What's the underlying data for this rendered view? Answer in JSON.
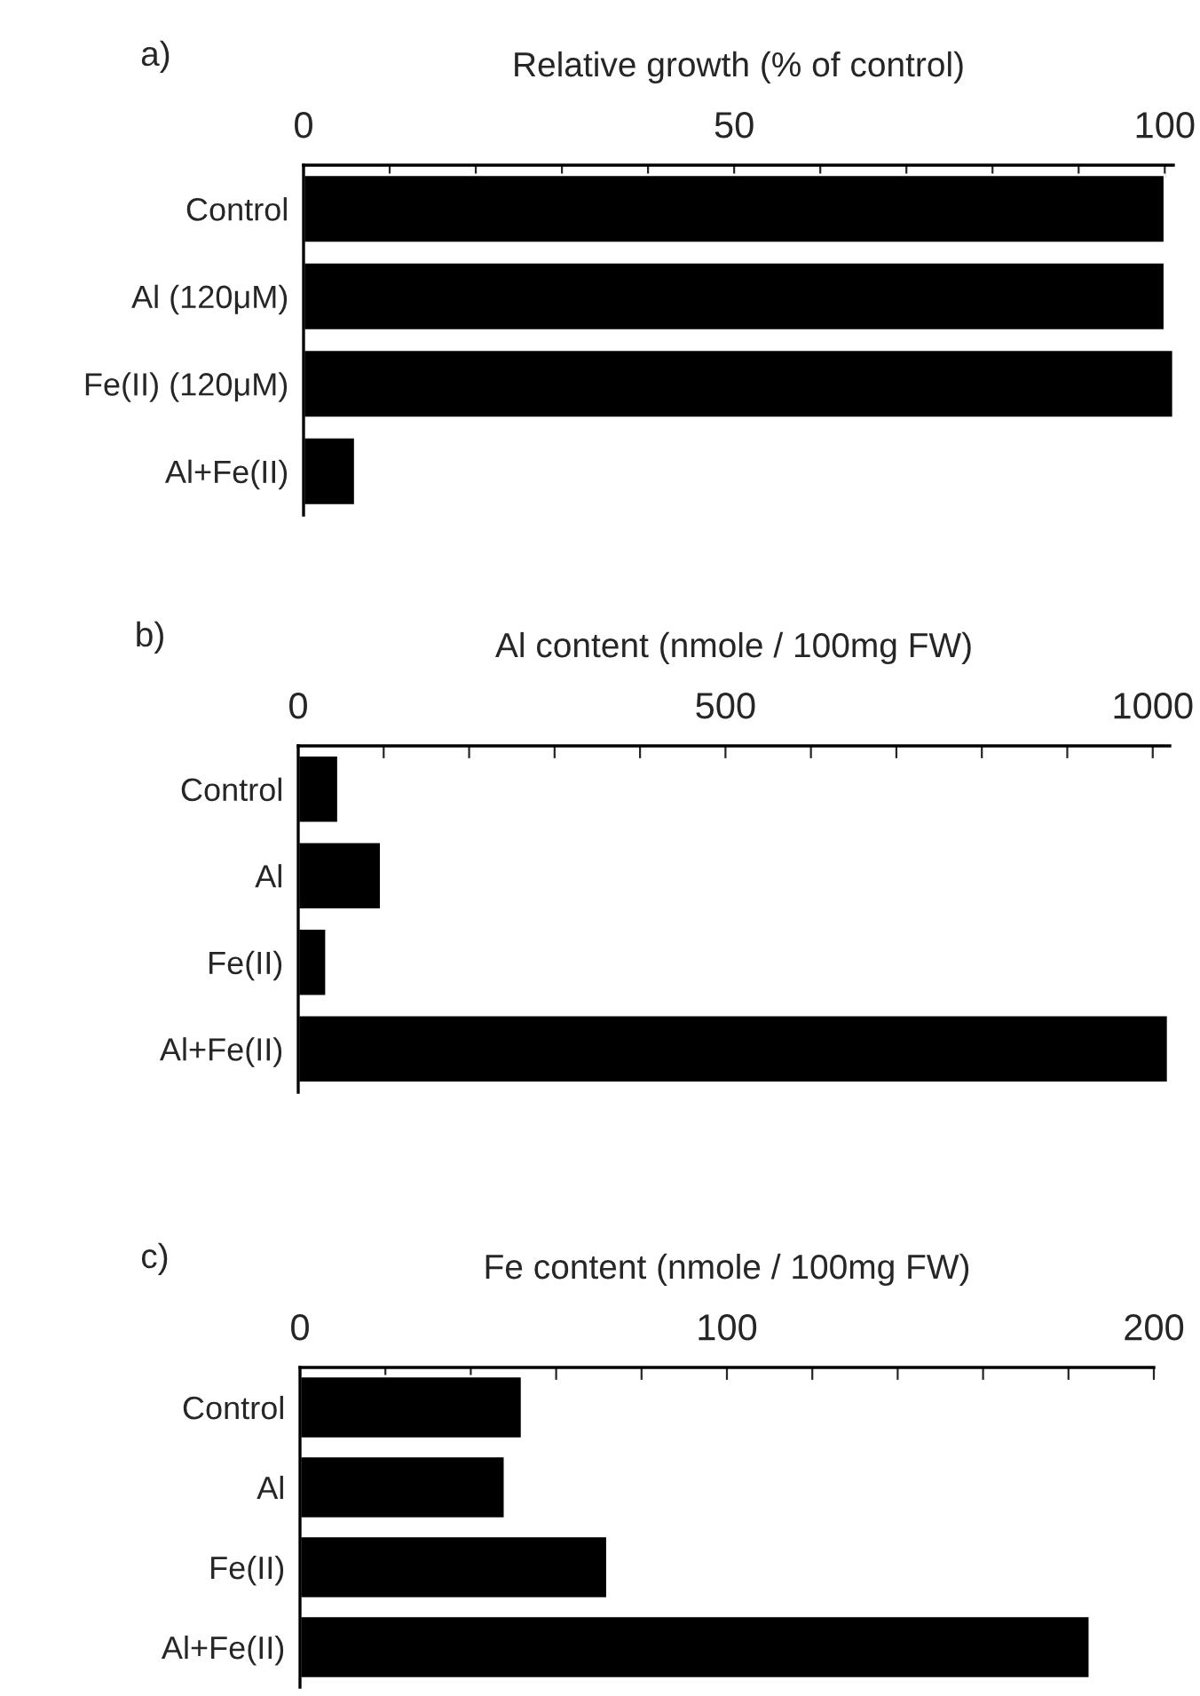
{
  "chart_data": [
    {
      "type": "bar",
      "orientation": "horizontal",
      "title": "a)",
      "xlabel": "Relative growth (% of control)",
      "categories": [
        "Control",
        "Al (120μM)",
        "Fe(II) (120μM)",
        "Al+Fe(II)"
      ],
      "values": [
        100,
        100,
        101,
        6
      ],
      "color": "#000000",
      "xlim": [
        0,
        101
      ],
      "xticks": [
        0,
        {
          "value": 10,
          "label": null
        },
        {
          "value": 20,
          "label": null
        },
        {
          "value": 30,
          "label": null
        },
        {
          "value": 40,
          "label": null
        },
        50,
        {
          "value": 60,
          "label": null
        },
        {
          "value": 70,
          "label": null
        },
        {
          "value": 80,
          "label": null
        },
        {
          "value": 90,
          "label": null
        },
        100
      ],
      "grid": false
    },
    {
      "type": "bar",
      "orientation": "horizontal",
      "title": "b)",
      "xlabel": "Al content (nmole / 100mg FW)",
      "categories": [
        "Control",
        "Al",
        "Fe(II)",
        "Al+Fe(II)"
      ],
      "values": [
        47,
        97,
        33,
        1018
      ],
      "color": "#000000",
      "xlim": [
        0,
        1020
      ],
      "xticks": [
        0,
        {
          "value": 100,
          "label": null
        },
        {
          "value": 200,
          "label": null
        },
        {
          "value": 300,
          "label": null
        },
        {
          "value": 400,
          "label": null
        },
        500,
        {
          "value": 600,
          "label": null
        },
        {
          "value": 700,
          "label": null
        },
        {
          "value": 800,
          "label": null
        },
        {
          "value": 900,
          "label": null
        },
        1000
      ],
      "grid": false
    },
    {
      "type": "bar",
      "orientation": "horizontal",
      "title": "c)",
      "xlabel": "Fe content (nmole / 100mg FW)",
      "categories": [
        "Control",
        "Al",
        "Fe(II)",
        "Al+Fe(II)"
      ],
      "values": [
        52,
        48,
        72,
        185
      ],
      "color": "#000000",
      "xlim": [
        0,
        200
      ],
      "xticks": [
        0,
        {
          "value": 20,
          "label": null
        },
        {
          "value": 40,
          "label": null
        },
        {
          "value": 60,
          "label": null
        },
        {
          "value": 80,
          "label": null
        },
        100,
        {
          "value": 120,
          "label": null
        },
        {
          "value": 140,
          "label": null
        },
        {
          "value": 160,
          "label": null
        },
        {
          "value": 180,
          "label": null
        },
        200
      ],
      "grid": false
    }
  ]
}
